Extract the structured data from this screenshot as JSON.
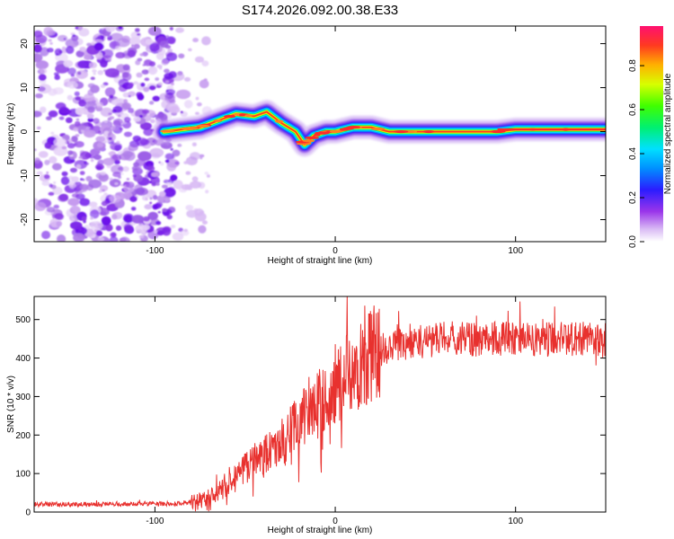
{
  "chart_data": [
    {
      "type": "heatmap",
      "title": "S174.2026.092.00.38.E33",
      "xlabel": "Height of straight line (km)",
      "ylabel": "Frequency (Hz)",
      "xlim": [
        -167,
        150
      ],
      "ylim": [
        -25,
        24
      ],
      "xticks": [
        -100,
        0,
        100
      ],
      "yticks": [
        -20,
        -10,
        0,
        10,
        20
      ],
      "colorbar": {
        "label": "Normalized spectral amplitude",
        "range": [
          0,
          0.98
        ],
        "ticks": [
          0.0,
          0.2,
          0.4,
          0.6,
          0.8
        ]
      },
      "ridge": {
        "description_x": [
          -95,
          -85,
          -75,
          -65,
          -55,
          -45,
          -38,
          -30,
          -22,
          -17,
          -12,
          -5,
          0,
          10,
          20,
          30,
          50,
          70,
          90,
          100,
          120,
          150
        ],
        "frequency_hz": [
          0,
          0.5,
          1,
          2.5,
          4,
          3.5,
          4.5,
          2,
          0,
          -3,
          -1,
          0,
          0,
          1,
          1,
          0,
          0,
          0,
          0,
          0.5,
          0.5,
          0.5
        ]
      },
      "noise_region_x": [
        -167,
        -85
      ]
    },
    {
      "type": "line",
      "xlabel": "Height of straight line (km)",
      "ylabel": "SNR (10 * v/v)",
      "xlim": [
        -167,
        150
      ],
      "ylim": [
        0,
        560
      ],
      "xticks": [
        -100,
        0,
        100
      ],
      "yticks": [
        0,
        100,
        200,
        300,
        400,
        500
      ],
      "series": [
        {
          "name": "SNR",
          "color": "#e8312e",
          "x": [
            -167,
            -150,
            -130,
            -110,
            -90,
            -80,
            -70,
            -60,
            -50,
            -40,
            -30,
            -20,
            -10,
            0,
            10,
            20,
            30,
            40,
            50,
            60,
            70,
            80,
            90,
            100,
            110,
            120,
            130,
            140,
            150
          ],
          "y": [
            20,
            20,
            20,
            21,
            22,
            25,
            40,
            70,
            110,
            150,
            180,
            230,
            280,
            320,
            370,
            410,
            430,
            440,
            445,
            450,
            450,
            448,
            450,
            450,
            450,
            448,
            450,
            450,
            450
          ]
        }
      ]
    }
  ]
}
